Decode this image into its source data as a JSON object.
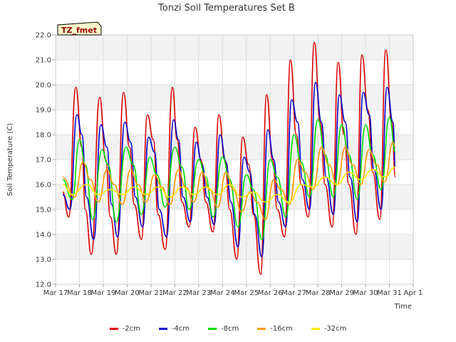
{
  "chart_data": {
    "type": "line",
    "title": "Tonzi Soil Temperatures Set B",
    "xlabel": "Time",
    "ylabel": "Soil Temperature (C)",
    "ylim": [
      12.0,
      22.0
    ],
    "yticks": [
      "12.0",
      "13.0",
      "14.0",
      "15.0",
      "16.0",
      "17.0",
      "18.0",
      "19.0",
      "20.0",
      "21.0",
      "22.0"
    ],
    "xticks": [
      "Mar 17",
      "Mar 18",
      "Mar 19",
      "Mar 20",
      "Mar 21",
      "Mar 22",
      "Mar 23",
      "Mar 24",
      "Mar 25",
      "Mar 26",
      "Mar 27",
      "Mar 28",
      "Mar 29",
      "Mar 30",
      "Mar 31",
      "Apr 1"
    ],
    "x_range_days": [
      17,
      32
    ],
    "annotation": "TZ_fmet",
    "legend_placement": "bottom",
    "grid": true,
    "series": [
      {
        "name": "-2cm",
        "color": "#dd0000",
        "points": [
          [
            17.3,
            15.7
          ],
          [
            17.55,
            14.7
          ],
          [
            17.85,
            19.9
          ],
          [
            18.1,
            17.5
          ],
          [
            18.25,
            15.0
          ],
          [
            18.5,
            13.2
          ],
          [
            18.85,
            19.5
          ],
          [
            19.1,
            17.0
          ],
          [
            19.3,
            14.7
          ],
          [
            19.55,
            13.2
          ],
          [
            19.85,
            19.7
          ],
          [
            20.1,
            17.5
          ],
          [
            20.3,
            15.2
          ],
          [
            20.6,
            13.8
          ],
          [
            20.85,
            18.8
          ],
          [
            21.1,
            17.8
          ],
          [
            21.3,
            14.8
          ],
          [
            21.6,
            13.4
          ],
          [
            21.9,
            19.9
          ],
          [
            22.1,
            17.8
          ],
          [
            22.3,
            15.3
          ],
          [
            22.6,
            14.3
          ],
          [
            22.85,
            18.3
          ],
          [
            23.1,
            17.0
          ],
          [
            23.3,
            15.3
          ],
          [
            23.6,
            14.1
          ],
          [
            23.85,
            18.8
          ],
          [
            24.1,
            17.0
          ],
          [
            24.3,
            15.0
          ],
          [
            24.6,
            13.0
          ],
          [
            24.85,
            17.9
          ],
          [
            25.1,
            16.8
          ],
          [
            25.3,
            14.8
          ],
          [
            25.6,
            12.4
          ],
          [
            25.85,
            19.6
          ],
          [
            26.1,
            17.0
          ],
          [
            26.3,
            15.0
          ],
          [
            26.6,
            13.9
          ],
          [
            26.85,
            21.0
          ],
          [
            27.1,
            18.0
          ],
          [
            27.3,
            16.0
          ],
          [
            27.6,
            14.7
          ],
          [
            27.85,
            21.7
          ],
          [
            28.1,
            18.5
          ],
          [
            28.3,
            16.0
          ],
          [
            28.6,
            14.3
          ],
          [
            28.85,
            20.9
          ],
          [
            29.1,
            18.0
          ],
          [
            29.3,
            16.0
          ],
          [
            29.6,
            14.0
          ],
          [
            29.85,
            21.2
          ],
          [
            30.1,
            19.0
          ],
          [
            30.3,
            16.5
          ],
          [
            30.6,
            14.6
          ],
          [
            30.85,
            21.4
          ],
          [
            31.1,
            18.5
          ],
          [
            31.25,
            16.3
          ]
        ]
      },
      {
        "name": "-4cm",
        "color": "#0000cc",
        "points": [
          [
            17.3,
            15.6
          ],
          [
            17.6,
            15.0
          ],
          [
            17.9,
            18.8
          ],
          [
            18.1,
            18.0
          ],
          [
            18.3,
            15.5
          ],
          [
            18.6,
            13.8
          ],
          [
            18.9,
            18.4
          ],
          [
            19.15,
            17.5
          ],
          [
            19.35,
            15.2
          ],
          [
            19.6,
            13.9
          ],
          [
            19.9,
            18.5
          ],
          [
            20.15,
            17.7
          ],
          [
            20.35,
            15.5
          ],
          [
            20.65,
            14.3
          ],
          [
            20.9,
            17.9
          ],
          [
            21.15,
            17.3
          ],
          [
            21.35,
            15.0
          ],
          [
            21.65,
            13.9
          ],
          [
            21.95,
            18.6
          ],
          [
            22.15,
            17.8
          ],
          [
            22.35,
            15.5
          ],
          [
            22.65,
            14.5
          ],
          [
            22.9,
            17.7
          ],
          [
            23.15,
            16.8
          ],
          [
            23.35,
            15.5
          ],
          [
            23.65,
            14.4
          ],
          [
            23.9,
            18.0
          ],
          [
            24.15,
            16.9
          ],
          [
            24.35,
            15.3
          ],
          [
            24.65,
            13.5
          ],
          [
            24.9,
            17.1
          ],
          [
            25.15,
            16.5
          ],
          [
            25.35,
            14.8
          ],
          [
            25.65,
            13.1
          ],
          [
            25.9,
            18.2
          ],
          [
            26.15,
            17.0
          ],
          [
            26.35,
            15.3
          ],
          [
            26.65,
            14.3
          ],
          [
            26.9,
            19.4
          ],
          [
            27.15,
            18.5
          ],
          [
            27.35,
            16.2
          ],
          [
            27.65,
            15.0
          ],
          [
            27.9,
            20.1
          ],
          [
            28.15,
            18.5
          ],
          [
            28.35,
            16.3
          ],
          [
            28.65,
            14.8
          ],
          [
            28.9,
            19.6
          ],
          [
            29.15,
            18.5
          ],
          [
            29.35,
            16.3
          ],
          [
            29.65,
            14.5
          ],
          [
            29.9,
            19.7
          ],
          [
            30.15,
            18.8
          ],
          [
            30.35,
            16.6
          ],
          [
            30.65,
            15.0
          ],
          [
            30.9,
            19.9
          ],
          [
            31.15,
            18.5
          ],
          [
            31.25,
            16.7
          ]
        ]
      },
      {
        "name": "-8cm",
        "color": "#00dd00",
        "points": [
          [
            17.3,
            16.2
          ],
          [
            17.7,
            15.4
          ],
          [
            18.0,
            17.8
          ],
          [
            18.25,
            16.8
          ],
          [
            18.55,
            14.6
          ],
          [
            18.95,
            17.4
          ],
          [
            19.2,
            16.8
          ],
          [
            19.55,
            14.5
          ],
          [
            19.95,
            17.5
          ],
          [
            20.25,
            16.8
          ],
          [
            20.6,
            14.8
          ],
          [
            20.95,
            17.1
          ],
          [
            21.25,
            16.4
          ],
          [
            21.6,
            15.1
          ],
          [
            22.0,
            17.5
          ],
          [
            22.3,
            16.7
          ],
          [
            22.6,
            15.0
          ],
          [
            23.0,
            17.0
          ],
          [
            23.3,
            16.3
          ],
          [
            23.6,
            14.7
          ],
          [
            24.0,
            17.1
          ],
          [
            24.3,
            16.2
          ],
          [
            24.65,
            14.3
          ],
          [
            25.0,
            16.4
          ],
          [
            25.3,
            15.8
          ],
          [
            25.65,
            13.8
          ],
          [
            26.0,
            17.0
          ],
          [
            26.3,
            16.3
          ],
          [
            26.65,
            14.7
          ],
          [
            27.0,
            18.0
          ],
          [
            27.3,
            16.9
          ],
          [
            27.65,
            15.5
          ],
          [
            28.0,
            18.6
          ],
          [
            28.3,
            17.2
          ],
          [
            28.65,
            15.5
          ],
          [
            29.0,
            18.4
          ],
          [
            29.3,
            17.2
          ],
          [
            29.65,
            15.4
          ],
          [
            30.0,
            18.4
          ],
          [
            30.3,
            17.2
          ],
          [
            30.65,
            15.8
          ],
          [
            31.0,
            18.7
          ],
          [
            31.25,
            17.3
          ]
        ]
      },
      {
        "name": "-16cm",
        "color": "#ff9900",
        "points": [
          [
            17.3,
            16.3
          ],
          [
            17.8,
            15.5
          ],
          [
            18.15,
            16.9
          ],
          [
            18.45,
            16.2
          ],
          [
            18.8,
            15.3
          ],
          [
            19.15,
            16.6
          ],
          [
            19.45,
            16.0
          ],
          [
            19.8,
            15.2
          ],
          [
            20.15,
            16.6
          ],
          [
            20.45,
            16.0
          ],
          [
            20.8,
            15.3
          ],
          [
            21.15,
            16.4
          ],
          [
            21.45,
            15.9
          ],
          [
            21.8,
            15.2
          ],
          [
            22.15,
            16.6
          ],
          [
            22.45,
            15.9
          ],
          [
            22.8,
            15.3
          ],
          [
            23.15,
            16.5
          ],
          [
            23.45,
            15.8
          ],
          [
            23.8,
            15.1
          ],
          [
            24.15,
            16.5
          ],
          [
            24.45,
            15.8
          ],
          [
            24.8,
            14.9
          ],
          [
            25.15,
            15.7
          ],
          [
            25.45,
            15.3
          ],
          [
            25.8,
            14.6
          ],
          [
            26.15,
            16.2
          ],
          [
            26.45,
            15.8
          ],
          [
            26.8,
            15.2
          ],
          [
            27.15,
            17.0
          ],
          [
            27.45,
            16.5
          ],
          [
            27.8,
            15.8
          ],
          [
            28.15,
            17.5
          ],
          [
            28.45,
            16.8
          ],
          [
            28.8,
            16.0
          ],
          [
            29.15,
            17.5
          ],
          [
            29.45,
            16.8
          ],
          [
            29.8,
            16.0
          ],
          [
            30.15,
            17.4
          ],
          [
            30.45,
            16.8
          ],
          [
            30.8,
            16.1
          ],
          [
            31.15,
            17.7
          ],
          [
            31.25,
            17.5
          ]
        ]
      },
      {
        "name": "-32cm",
        "color": "#ffee00",
        "points": [
          [
            17.3,
            16.0
          ],
          [
            17.7,
            15.6
          ],
          [
            18.3,
            16.0
          ],
          [
            18.8,
            15.6
          ],
          [
            19.3,
            15.8
          ],
          [
            19.8,
            15.6
          ],
          [
            20.3,
            15.9
          ],
          [
            20.8,
            15.6
          ],
          [
            21.3,
            15.9
          ],
          [
            21.8,
            15.5
          ],
          [
            22.3,
            15.9
          ],
          [
            22.8,
            15.6
          ],
          [
            23.3,
            15.9
          ],
          [
            23.8,
            15.6
          ],
          [
            24.3,
            16.0
          ],
          [
            24.8,
            15.5
          ],
          [
            25.3,
            15.7
          ],
          [
            25.8,
            15.3
          ],
          [
            26.3,
            15.6
          ],
          [
            26.8,
            15.3
          ],
          [
            27.3,
            16.0
          ],
          [
            27.8,
            15.9
          ],
          [
            28.3,
            16.3
          ],
          [
            28.8,
            16.0
          ],
          [
            29.3,
            16.5
          ],
          [
            29.8,
            16.2
          ],
          [
            30.3,
            16.6
          ],
          [
            30.8,
            16.3
          ],
          [
            31.25,
            16.7
          ]
        ]
      }
    ]
  }
}
